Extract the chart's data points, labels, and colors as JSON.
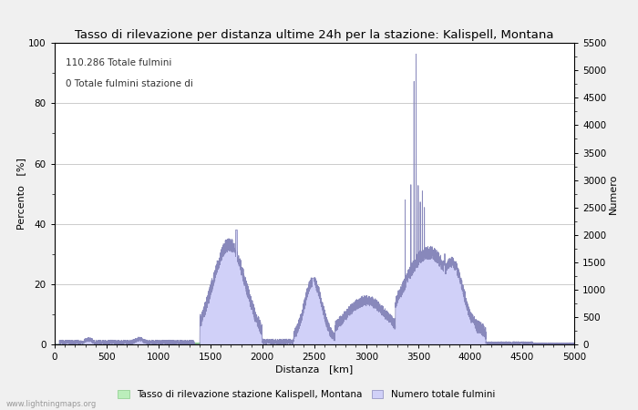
{
  "title": "Tasso di rilevazione per distanza ultime 24h per la stazione: Kalispell, Montana",
  "xlabel": "Distanza   [km]",
  "ylabel_left": "Percento   [%]",
  "ylabel_right": "Numero",
  "annotation_line1": "110.286 Totale fulmini",
  "annotation_line2": "0 Totale fulmini stazione di",
  "xlim": [
    0,
    5000
  ],
  "ylim_left": [
    0,
    100
  ],
  "ylim_right": [
    0,
    5500
  ],
  "xticks": [
    0,
    500,
    1000,
    1500,
    2000,
    2500,
    3000,
    3500,
    4000,
    4500,
    5000
  ],
  "yticks_left": [
    0,
    20,
    40,
    60,
    80,
    100
  ],
  "yticks_right": [
    0,
    500,
    1000,
    1500,
    2000,
    2500,
    3000,
    3500,
    4000,
    4500,
    5000,
    5500
  ],
  "legend_label_green": "Tasso di rilevazione stazione Kalispell, Montana",
  "legend_label_blue": "Numero totale fulmini",
  "watermark": "www.lightningmaps.org",
  "bg_color": "#f0f0f0",
  "plot_bg_color": "#ffffff",
  "green_fill_color": "#bbeebb",
  "blue_fill_color": "#d0d0f8",
  "blue_line_color": "#8888bb",
  "grid_color": "#cccccc",
  "title_fontsize": 9.5,
  "axis_label_fontsize": 8,
  "tick_fontsize": 7.5,
  "annotation_fontsize": 7.5,
  "legend_fontsize": 7.5
}
